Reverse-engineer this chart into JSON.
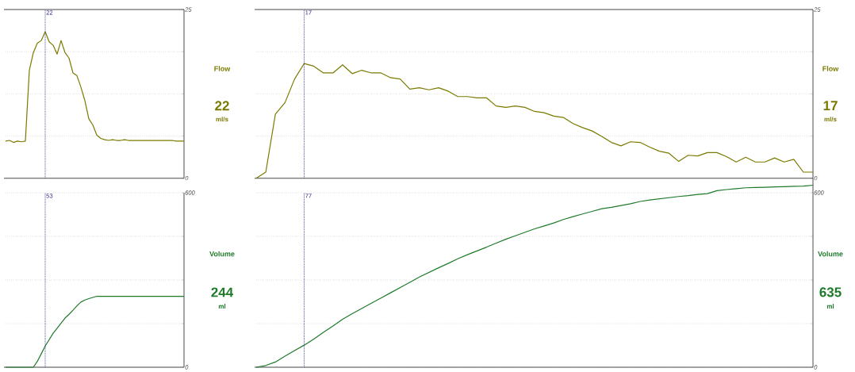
{
  "chart_data": [
    {
      "type": "line",
      "ylabel": "Flow",
      "annotations": [
        "22",
        "22",
        "ml/s"
      ],
      "tick_labels": "y",
      "grid": "y",
      "categories": [
        null,
        null,
        null,
        null,
        null,
        null,
        null,
        null,
        null,
        null,
        null,
        null,
        null,
        null,
        null,
        null,
        null,
        null,
        null,
        null,
        null,
        null,
        null,
        null,
        null,
        null,
        null,
        null,
        null,
        null,
        null,
        null,
        null,
        null,
        null,
        null,
        null,
        null,
        null,
        null,
        null,
        null,
        null,
        null,
        null,
        null
      ],
      "ylim": [
        0,
        25
      ],
      "yticks": [
        0,
        {
          "value": 6.25,
          "label": null
        },
        {
          "value": 12.5,
          "label": null
        },
        {
          "value": 18.75,
          "label": null
        },
        25
      ],
      "series": [
        {
          "color": "#7a7a00",
          "values": [
            5.5,
            5.6,
            5.3,
            5.5,
            5.4,
            5.5,
            16.0,
            18.6,
            20.0,
            20.4,
            21.7,
            20.2,
            19.7,
            18.4,
            20.4,
            18.6,
            17.8,
            15.6,
            15.2,
            13.5,
            11.5,
            8.8,
            7.9,
            6.4,
            5.9,
            5.7,
            5.6,
            5.7,
            5.6,
            5.6,
            5.7,
            5.6,
            5.6,
            5.6,
            5.6,
            5.6,
            5.6,
            5.6,
            5.6,
            5.6,
            5.6,
            5.6,
            5.6,
            5.5,
            5.5,
            5.5
          ]
        }
      ]
    },
    {
      "type": "line",
      "ylabel": "Flow",
      "annotations": [
        "17",
        "17",
        "ml/s"
      ],
      "tick_labels": "y",
      "grid": "y",
      "categories": [
        null,
        null,
        null,
        null,
        null,
        null,
        null,
        null,
        null,
        null,
        null,
        null,
        null,
        null,
        null,
        null,
        null,
        null,
        null,
        null,
        null,
        null,
        null,
        null,
        null,
        null,
        null,
        null,
        null,
        null,
        null,
        null,
        null,
        null,
        null,
        null,
        null,
        null,
        null,
        null,
        null,
        null,
        null,
        null,
        null,
        null,
        null,
        null,
        null,
        null,
        null,
        null,
        null,
        null,
        null,
        null,
        null,
        null,
        null
      ],
      "ylim": [
        0,
        25
      ],
      "yticks": [
        0,
        {
          "value": 6.25,
          "label": null
        },
        {
          "value": 12.5,
          "label": null
        },
        {
          "value": 18.75,
          "label": null
        },
        25
      ],
      "series": [
        {
          "color": "#7a7a00",
          "values": [
            0,
            0.9,
            9.5,
            11.2,
            14.7,
            17.0,
            16.6,
            15.6,
            15.6,
            16.8,
            15.5,
            16.0,
            15.6,
            15.6,
            14.9,
            14.7,
            13.2,
            13.4,
            13.1,
            13.4,
            12.9,
            12.1,
            12.1,
            11.9,
            11.9,
            10.7,
            10.5,
            10.7,
            10.5,
            9.9,
            9.7,
            9.2,
            9.0,
            8.1,
            7.5,
            7.0,
            6.2,
            5.3,
            4.8,
            5.4,
            5.3,
            4.6,
            4.0,
            3.7,
            2.5,
            3.4,
            3.3,
            3.8,
            3.8,
            3.2,
            2.4,
            3.1,
            2.4,
            2.4,
            3.0,
            2.4,
            2.8,
            0.9,
            0.9
          ]
        }
      ]
    },
    {
      "type": "line",
      "ylabel": "Volume",
      "annotations": [
        "53",
        "244",
        "ml"
      ],
      "tick_labels": "y",
      "grid": "y",
      "categories": [
        null,
        null,
        null,
        null,
        null,
        null,
        null,
        null,
        null,
        null,
        null,
        null,
        null,
        null,
        null,
        null,
        null,
        null,
        null,
        null,
        null,
        null,
        null,
        null,
        null,
        null,
        null,
        null,
        null,
        null,
        null,
        null,
        null,
        null,
        null,
        null,
        null,
        null,
        null,
        null,
        null,
        null,
        null,
        null,
        null,
        null
      ],
      "ylim": [
        0,
        600
      ],
      "yticks": [
        0,
        {
          "value": 150,
          "label": null
        },
        {
          "value": 300,
          "label": null
        },
        {
          "value": 450,
          "label": null
        },
        600
      ],
      "series": [
        {
          "color": "#1f7a2a",
          "values": [
            0,
            0,
            0,
            0,
            0,
            0,
            0,
            0,
            20,
            46,
            73,
            95,
            117,
            134,
            152,
            169,
            182,
            196,
            211,
            224,
            231,
            236,
            240,
            244,
            244,
            244,
            244,
            244,
            244,
            244,
            244,
            244,
            244,
            244,
            244,
            244,
            244,
            244,
            244,
            244,
            244,
            244,
            244,
            244,
            244,
            244
          ]
        }
      ]
    },
    {
      "type": "line",
      "ylabel": "Volume",
      "annotations": [
        "77",
        "635",
        "ml"
      ],
      "tick_labels": "y",
      "grid": "y",
      "categories": [
        null,
        null,
        null,
        null,
        null,
        null,
        null,
        null,
        null,
        null,
        null,
        null,
        null,
        null,
        null,
        null,
        null,
        null,
        null,
        null,
        null,
        null,
        null,
        null,
        null,
        null,
        null,
        null,
        null,
        null,
        null,
        null,
        null,
        null,
        null,
        null,
        null,
        null,
        null,
        null,
        null,
        null,
        null,
        null,
        null,
        null,
        null,
        null,
        null,
        null,
        null,
        null,
        null,
        null,
        null,
        null,
        null,
        null,
        null
      ],
      "ylim": [
        0,
        650
      ],
      "yticks": [
        0,
        {
          "value": 150,
          "label": null
        },
        {
          "value": 300,
          "label": null
        },
        {
          "value": 450,
          "label": null
        },
        600
      ],
      "series": [
        {
          "color": "#1f7a2a",
          "values": [
            0,
            6,
            18,
            38,
            57,
            76,
            97,
            120,
            142,
            165,
            184,
            202,
            220,
            238,
            256,
            274,
            292,
            310,
            326,
            342,
            357,
            373,
            387,
            400,
            413,
            427,
            440,
            452,
            464,
            476,
            486,
            496,
            508,
            518,
            527,
            536,
            545,
            550,
            556,
            562,
            570,
            575,
            579,
            583,
            587,
            590,
            594,
            597,
            607,
            611,
            614,
            617,
            618,
            619,
            620,
            621,
            622,
            623,
            626
          ]
        }
      ]
    }
  ]
}
